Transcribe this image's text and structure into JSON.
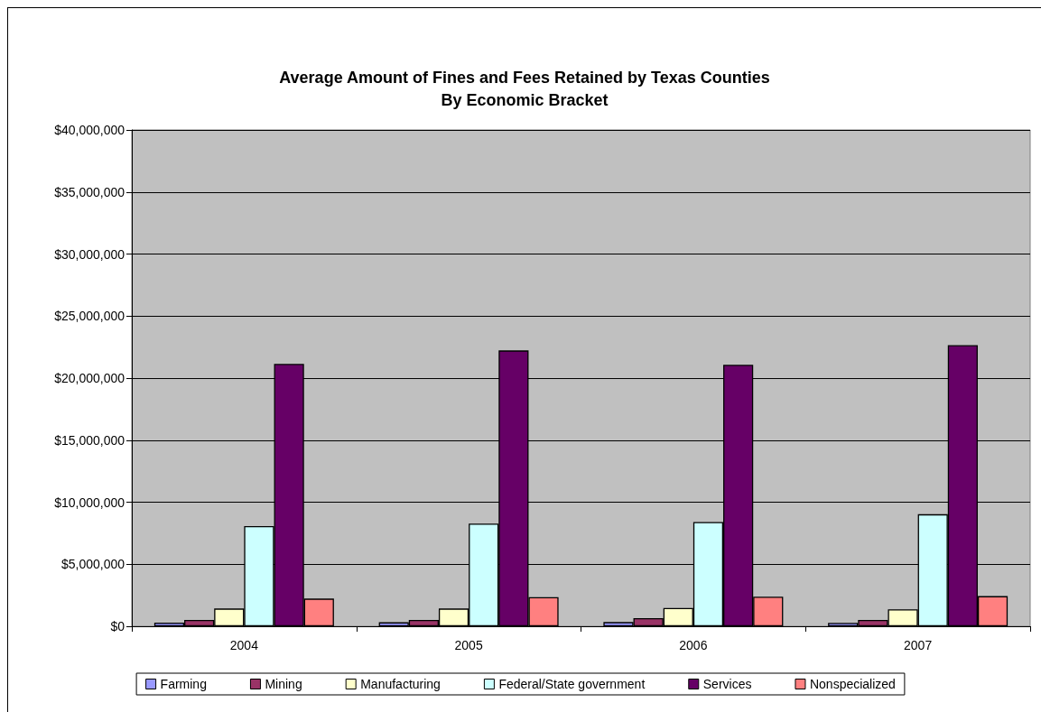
{
  "chart_data": {
    "type": "bar",
    "title": "Average Amount of Fines and Fees Retained by Texas Counties",
    "subtitle": "By Economic Bracket",
    "categories": [
      "2004",
      "2005",
      "2006",
      "2007"
    ],
    "series": [
      {
        "name": "Farming",
        "color": "#9999ff",
        "values": [
          290000,
          320000,
          340000,
          270000
        ]
      },
      {
        "name": "Mining",
        "color": "#993366",
        "values": [
          510000,
          510000,
          660000,
          510000
        ]
      },
      {
        "name": "Manufacturing",
        "color": "#ffffcc",
        "values": [
          1430000,
          1430000,
          1480000,
          1360000
        ]
      },
      {
        "name": "Federal/State government",
        "color": "#ccffff",
        "values": [
          8080000,
          8280000,
          8400000,
          9030000
        ]
      },
      {
        "name": "Services",
        "color": "#660066",
        "values": [
          21140000,
          22230000,
          21070000,
          22650000
        ]
      },
      {
        "name": "Nonspecialized",
        "color": "#ff8080",
        "values": [
          2230000,
          2350000,
          2380000,
          2430000
        ]
      }
    ],
    "ylim": [
      0,
      40000000
    ],
    "yticks": [
      {
        "value": 0,
        "label": "$0"
      },
      {
        "value": 5000000,
        "label": "$5,000,000"
      },
      {
        "value": 10000000,
        "label": "$10,000,000"
      },
      {
        "value": 15000000,
        "label": "$15,000,000"
      },
      {
        "value": 20000000,
        "label": "$20,000,000"
      },
      {
        "value": 25000000,
        "label": "$25,000,000"
      },
      {
        "value": 30000000,
        "label": "$30,000,000"
      },
      {
        "value": 35000000,
        "label": "$35,000,000"
      },
      {
        "value": 40000000,
        "label": "$40,000,000"
      }
    ],
    "grid": "y",
    "legend": "bottom"
  }
}
